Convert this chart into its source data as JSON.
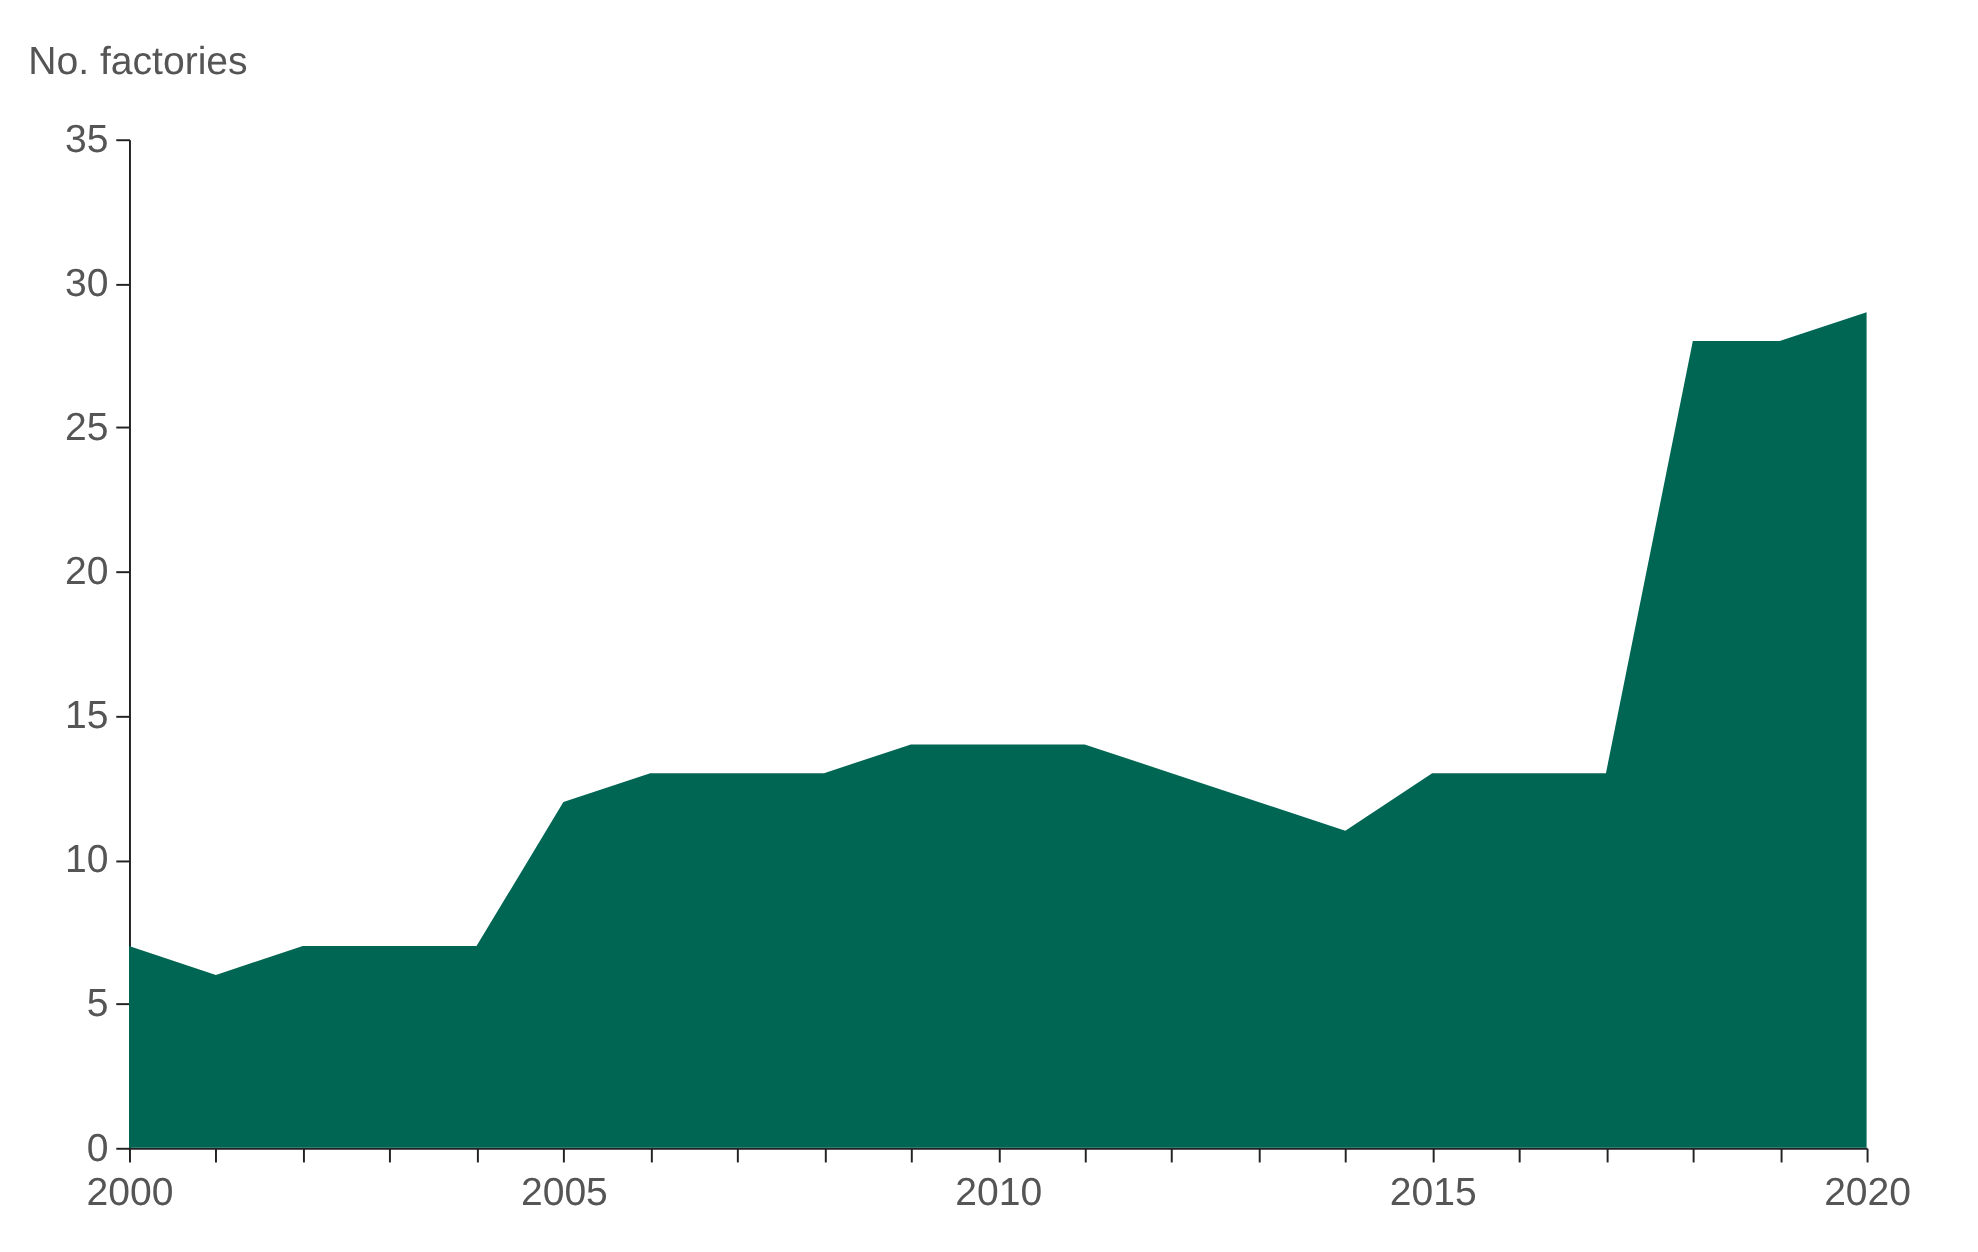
{
  "chart_data": {
    "type": "area",
    "ylabel": "No. factories",
    "x": [
      2000,
      2001,
      2002,
      2003,
      2004,
      2005,
      2006,
      2007,
      2008,
      2009,
      2010,
      2011,
      2012,
      2013,
      2014,
      2015,
      2016,
      2017,
      2018,
      2019,
      2020
    ],
    "series": [
      {
        "color": "#006654",
        "values": [
          7,
          6,
          7,
          7,
          7,
          12,
          13,
          13,
          13,
          14,
          14,
          14,
          13,
          12,
          11,
          13,
          13,
          13,
          28,
          28,
          29
        ]
      }
    ],
    "xlim": [
      2000,
      2020
    ],
    "xticks": [
      2000,
      {
        "value": 2001,
        "label": null
      },
      {
        "value": 2002,
        "label": null
      },
      {
        "value": 2003,
        "label": null
      },
      {
        "value": 2004,
        "label": null
      },
      2005,
      {
        "value": 2006,
        "label": null
      },
      {
        "value": 2007,
        "label": null
      },
      {
        "value": 2008,
        "label": null
      },
      {
        "value": 2009,
        "label": null
      },
      2010,
      {
        "value": 2011,
        "label": null
      },
      {
        "value": 2012,
        "label": null
      },
      {
        "value": 2013,
        "label": null
      },
      {
        "value": 2014,
        "label": null
      },
      2015,
      {
        "value": 2016,
        "label": null
      },
      {
        "value": 2017,
        "label": null
      },
      {
        "value": 2018,
        "label": null
      },
      {
        "value": 2019,
        "label": null
      },
      2020
    ],
    "ylim": [
      0,
      35
    ],
    "yticks": [
      0,
      5,
      10,
      15,
      20,
      25,
      30,
      35
    ],
    "grid": false
  }
}
